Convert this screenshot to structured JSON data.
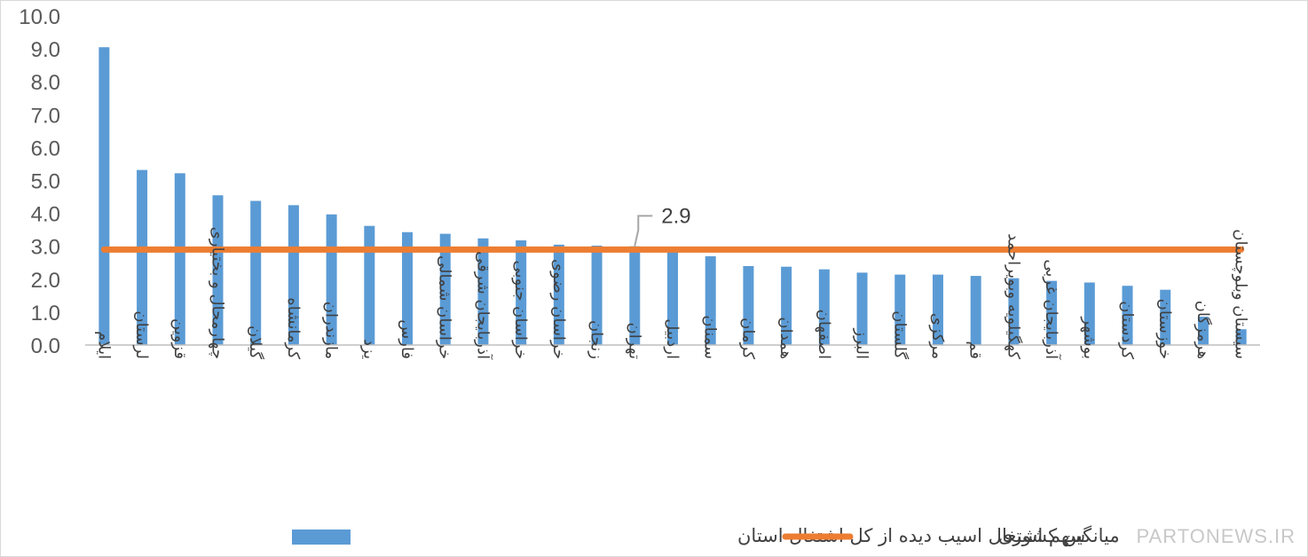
{
  "chart_data": {
    "type": "bar",
    "categories": [
      "ایلام",
      "لرستان",
      "قزوین",
      "چهارمحال و بختیاری",
      "گیلان",
      "کرمانشاه",
      "مازندران",
      "یزد",
      "فارس",
      "خراسان شمالی",
      "آذربایجان شرقی",
      "خراسان جنوبی",
      "خراسان رضوی",
      "زنجان",
      "تهران",
      "اردبیل",
      "سمنان",
      "کرمان",
      "همدان",
      "اصفهان",
      "البرز",
      "گلستان",
      "مرکزی",
      "قم",
      "کهگیلویه وبویراحمد",
      "آذربایجان غربی",
      "بوشهر",
      "کردستان",
      "خوزستان",
      "هرمزگان",
      "سیستان وبلوچستان"
    ],
    "series": [
      {
        "name": "سهم اشتغال اسیب دیده از کل اشتغال استان",
        "type": "bar",
        "color": "#5b9bd5",
        "values": [
          9.05,
          5.32,
          5.22,
          4.55,
          4.38,
          4.25,
          3.97,
          3.62,
          3.43,
          3.38,
          3.24,
          3.18,
          3.05,
          3.02,
          3.0,
          2.9,
          2.7,
          2.4,
          2.38,
          2.3,
          2.2,
          2.14,
          2.14,
          2.1,
          2.03,
          1.95,
          1.9,
          1.8,
          1.68,
          0.86,
          0.48
        ]
      },
      {
        "name": "میانگین کشوری",
        "type": "line",
        "color": "#ed7d31",
        "value": 2.9
      }
    ],
    "yticks": [
      "0.0",
      "1.0",
      "2.0",
      "3.0",
      "4.0",
      "5.0",
      "6.0",
      "7.0",
      "8.0",
      "9.0",
      "10.0"
    ],
    "ylim": [
      0,
      10
    ],
    "annotation": {
      "text": "2.9",
      "target_category": "تهران",
      "value": 2.9
    },
    "grid": false,
    "legend_position": "bottom"
  },
  "watermark": "PARTONEWS.IR"
}
